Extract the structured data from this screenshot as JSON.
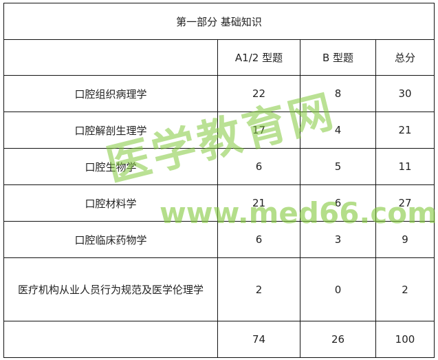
{
  "table": {
    "title": "第一部分  基础知识",
    "headers": [
      "",
      "A1/2 型题",
      "B 型题",
      "总分"
    ],
    "rows": [
      {
        "subject": "口腔组织病理学",
        "a12": "22",
        "b": "8",
        "total": "30"
      },
      {
        "subject": "口腔解剖生理学",
        "a12": "17",
        "b": "4",
        "total": "21"
      },
      {
        "subject": "口腔生物学",
        "a12": "6",
        "b": "5",
        "total": "11"
      },
      {
        "subject": "口腔材料学",
        "a12": "21",
        "b": "6",
        "total": "27"
      },
      {
        "subject": "口腔临床药物学",
        "a12": "6",
        "b": "3",
        "total": "9"
      },
      {
        "subject": "医疗机构从业人员行为规范及医学伦理学",
        "a12": "2",
        "b": "0",
        "total": "2"
      }
    ],
    "sum": {
      "subject": "",
      "a12": "74",
      "b": "26",
      "total": "100"
    }
  },
  "watermark": {
    "text": "医学教育网",
    "url": "www.med66.com",
    "color": "#82c83c"
  }
}
